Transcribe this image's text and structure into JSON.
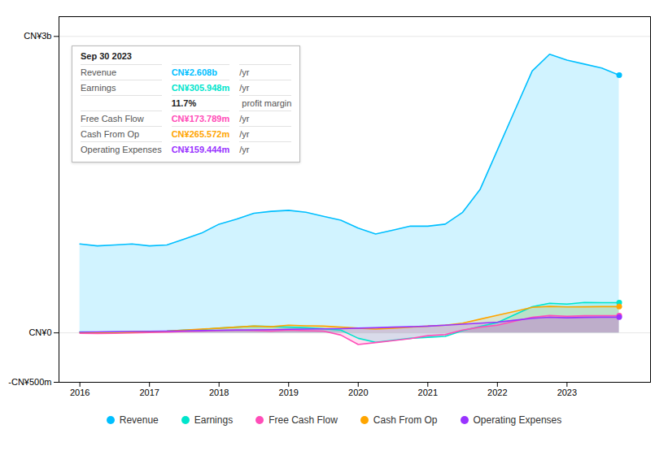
{
  "chart_data": {
    "type": "area",
    "x": [
      2016.0,
      2016.25,
      2016.5,
      2016.75,
      2017.0,
      2017.25,
      2017.5,
      2017.75,
      2018.0,
      2018.25,
      2018.5,
      2018.75,
      2019.0,
      2019.25,
      2019.5,
      2019.75,
      2020.0,
      2020.25,
      2020.5,
      2020.75,
      2021.0,
      2021.25,
      2021.5,
      2021.75,
      2022.0,
      2022.25,
      2022.5,
      2022.75,
      2023.0,
      2023.25,
      2023.5,
      2023.75
    ],
    "series": [
      {
        "name": "Revenue",
        "color": "#00bfff",
        "values": [
          900,
          880,
          890,
          900,
          880,
          890,
          950,
          1010,
          1100,
          1150,
          1210,
          1230,
          1240,
          1220,
          1180,
          1140,
          1060,
          1000,
          1040,
          1080,
          1080,
          1100,
          1220,
          1450,
          1850,
          2250,
          2650,
          2820,
          2760,
          2720,
          2680,
          2608
        ]
      },
      {
        "name": "Earnings",
        "color": "#00e5cc",
        "values": [
          10,
          8,
          9,
          10,
          12,
          18,
          28,
          34,
          48,
          58,
          68,
          64,
          58,
          52,
          42,
          28,
          -55,
          -95,
          -75,
          -55,
          -45,
          -35,
          22,
          65,
          105,
          185,
          265,
          300,
          292,
          308,
          306,
          306
        ]
      },
      {
        "name": "Free Cash Flow",
        "color": "#ff4db8",
        "values": [
          -5,
          -7,
          -4,
          0,
          5,
          9,
          14,
          18,
          24,
          28,
          24,
          18,
          28,
          22,
          18,
          -22,
          -118,
          -98,
          -78,
          -58,
          -28,
          -18,
          28,
          58,
          78,
          118,
          158,
          175,
          168,
          173,
          174,
          174
        ]
      },
      {
        "name": "Cash From Op",
        "color": "#ffa500",
        "values": [
          5,
          5,
          7,
          9,
          14,
          18,
          28,
          38,
          48,
          58,
          68,
          62,
          78,
          72,
          68,
          58,
          48,
          38,
          48,
          58,
          68,
          78,
          98,
          138,
          178,
          218,
          258,
          268,
          263,
          264,
          266,
          266
        ]
      },
      {
        "name": "Operating Expenses",
        "color": "#9933ff",
        "values": [
          8,
          10,
          12,
          14,
          16,
          18,
          20,
          23,
          26,
          28,
          30,
          33,
          36,
          38,
          40,
          43,
          48,
          52,
          58,
          62,
          68,
          78,
          88,
          98,
          108,
          128,
          148,
          158,
          153,
          157,
          159,
          159
        ]
      }
    ],
    "xlim": [
      2015.7,
      2024.2
    ],
    "xticks": [
      2016,
      2017,
      2018,
      2019,
      2020,
      2021,
      2022,
      2023
    ],
    "ylim": [
      -500,
      3200
    ],
    "yticks": [
      {
        "value": -500,
        "label": "-CN¥500m"
      },
      {
        "value": 0,
        "label": "CN¥0"
      },
      {
        "value": 3000,
        "label": "CN¥3b"
      }
    ],
    "grid": true,
    "legend": "bottom",
    "annotations": [
      {
        "text": "Sep 30 2023"
      },
      {
        "label": "Revenue",
        "value": "CN¥2.608b",
        "unit": "/yr"
      },
      {
        "label": "Earnings",
        "value": "CN¥305.948m",
        "unit": "/yr"
      },
      {
        "value": "11.7%",
        "unit": " profit margin"
      },
      {
        "label": "Free Cash Flow",
        "value": "CN¥173.789m",
        "unit": "/yr"
      },
      {
        "label": "Cash From Op",
        "value": "CN¥265.572m",
        "unit": "/yr"
      },
      {
        "label": "Operating Expenses",
        "value": "CN¥159.444m",
        "unit": "/yr"
      }
    ]
  }
}
